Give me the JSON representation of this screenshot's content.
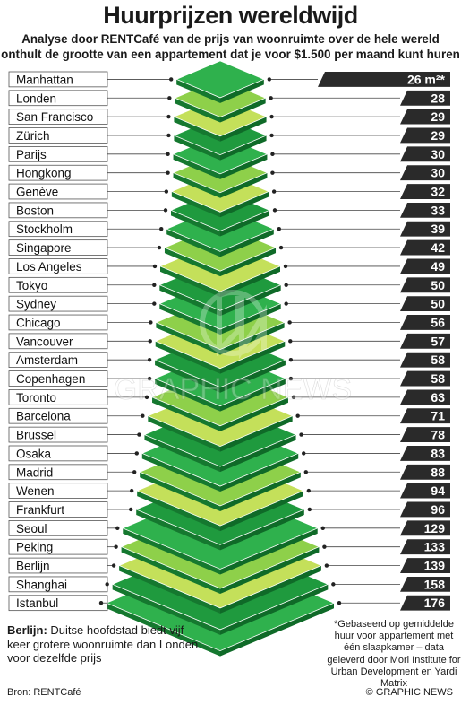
{
  "header": {
    "title": "Huurprijzen wereldwijd",
    "subtitle_line1": "Analyse door RENTCafé van de prijs van woonruimte over de hele wereld",
    "subtitle_line2": "onthult de grootte van een appartement dat je voor $1.500 per maand kunt huren"
  },
  "chart_data": {
    "type": "bar",
    "title": "Huurprijzen wereldwijd",
    "unit": "m²",
    "first_value_label": "26 m²*",
    "categories": [
      "Manhattan",
      "Londen",
      "San Francisco",
      "Zürich",
      "Parijs",
      "Hongkong",
      "Genève",
      "Boston",
      "Stockholm",
      "Singapore",
      "Los Angeles",
      "Tokyo",
      "Sydney",
      "Chicago",
      "Vancouver",
      "Amsterdam",
      "Copenhagen",
      "Toronto",
      "Barcelona",
      "Brussel",
      "Osaka",
      "Madrid",
      "Wenen",
      "Frankfurt",
      "Seoul",
      "Peking",
      "Berlijn",
      "Shanghai",
      "Istanbul"
    ],
    "values": [
      26,
      28,
      29,
      29,
      30,
      30,
      32,
      33,
      39,
      42,
      49,
      50,
      50,
      56,
      57,
      58,
      58,
      63,
      71,
      78,
      83,
      88,
      94,
      96,
      129,
      133,
      139,
      158,
      176
    ],
    "colors": {
      "green_dark": "#1f9a3e",
      "green_mid": "#2fb14d",
      "green_light": "#8ed04a",
      "lime": "#c4e05a",
      "label_bg": "#2a2a2a"
    }
  },
  "notes": {
    "berlin_lead": "Berlijn:",
    "berlin_text": " Duitse hoofdstad biedt vijf keer grotere woonruimte dan Londen voor dezelfde prijs",
    "footnote": "*Gebaseerd op gemiddelde huur voor appartement met één slaapkamer – data geleverd door Mori Institute for Urban Development en Yardi Matrix"
  },
  "footer": {
    "source": "Bron: RENTCafé",
    "credit": "© GRAPHIC NEWS"
  },
  "watermark": {
    "icon": "graphic-news-logo-icon",
    "text": "GRAPHIC NEWS"
  }
}
